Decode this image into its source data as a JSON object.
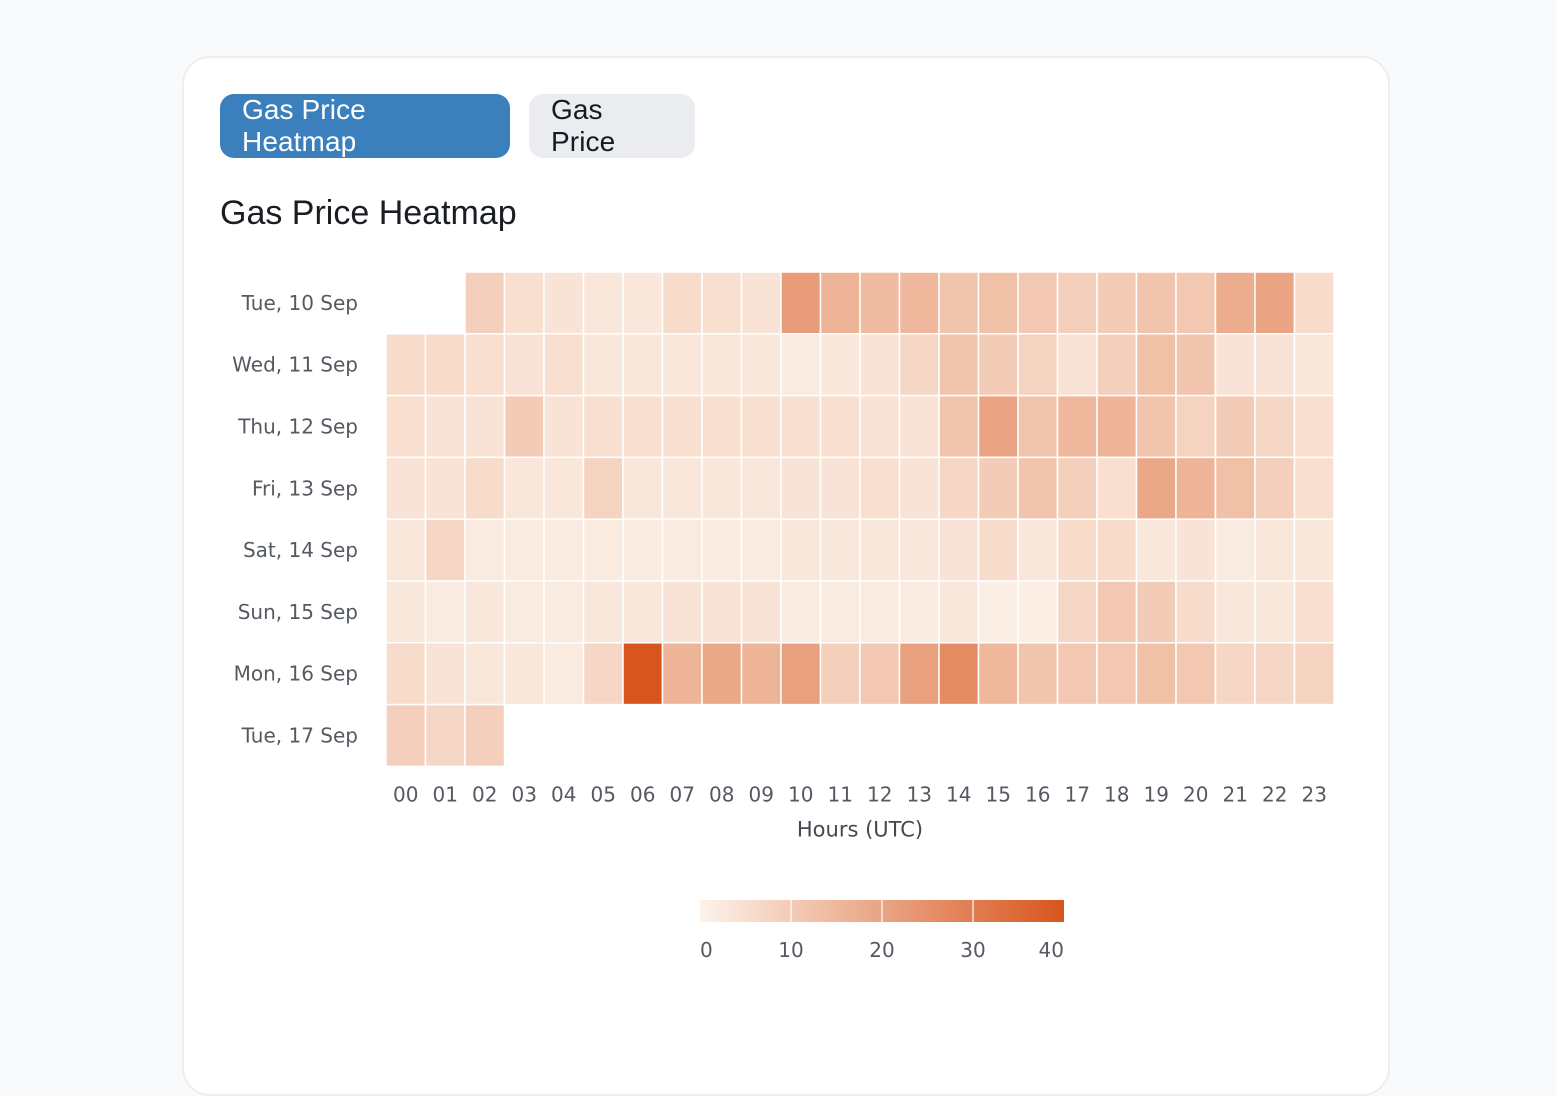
{
  "tabs": [
    {
      "label": "Gas Price Heatmap",
      "active": true
    },
    {
      "label": "Gas Price",
      "active": false
    }
  ],
  "heading": "Gas Price Heatmap",
  "chart_data": {
    "type": "heatmap",
    "title": "Gas Price Heatmap",
    "xlabel": "Hours (UTC)",
    "ylabel": "",
    "x_categories": [
      "00",
      "01",
      "02",
      "03",
      "04",
      "05",
      "06",
      "07",
      "08",
      "09",
      "10",
      "11",
      "12",
      "13",
      "14",
      "15",
      "16",
      "17",
      "18",
      "19",
      "20",
      "21",
      "22",
      "23"
    ],
    "y_categories": [
      "Tue, 10 Sep",
      "Wed, 11 Sep",
      "Thu, 12 Sep",
      "Fri, 13 Sep",
      "Sat, 14 Sep",
      "Sun, 15 Sep",
      "Mon, 16 Sep",
      "Tue, 17 Sep"
    ],
    "values": [
      [
        null,
        null,
        9,
        5,
        4,
        3,
        3,
        6,
        5,
        4,
        22,
        16,
        14,
        15,
        12,
        13,
        11,
        9,
        10,
        12,
        11,
        18,
        20,
        6
      ],
      [
        6,
        6,
        5,
        4,
        5,
        3,
        3,
        3,
        3,
        3,
        2,
        3,
        4,
        7,
        12,
        10,
        8,
        4,
        9,
        13,
        12,
        4,
        4,
        3
      ],
      [
        5,
        4,
        4,
        10,
        4,
        5,
        5,
        5,
        5,
        5,
        5,
        5,
        4,
        4,
        12,
        20,
        12,
        15,
        16,
        12,
        8,
        10,
        7,
        5
      ],
      [
        4,
        4,
        6,
        3,
        3,
        8,
        3,
        3,
        3,
        3,
        4,
        4,
        5,
        4,
        7,
        10,
        12,
        9,
        5,
        19,
        16,
        13,
        9,
        5
      ],
      [
        3,
        7,
        2,
        2,
        2,
        2,
        2,
        2,
        2,
        2,
        3,
        3,
        3,
        3,
        4,
        6,
        3,
        6,
        6,
        3,
        4,
        2,
        3,
        3
      ],
      [
        3,
        2,
        3,
        2,
        2,
        3,
        3,
        4,
        4,
        4,
        2,
        2,
        2,
        2,
        3,
        1,
        1,
        7,
        11,
        10,
        6,
        3,
        3,
        5
      ],
      [
        6,
        4,
        3,
        3,
        2,
        7,
        41,
        16,
        19,
        16,
        21,
        9,
        11,
        21,
        26,
        15,
        12,
        11,
        11,
        13,
        11,
        7,
        7,
        8
      ],
      [
        9,
        7,
        9,
        null,
        null,
        null,
        null,
        null,
        null,
        null,
        null,
        null,
        null,
        null,
        null,
        null,
        null,
        null,
        null,
        null,
        null,
        null,
        null,
        null
      ]
    ],
    "colorbar": {
      "min": 0,
      "max": 40,
      "ticks": [
        0,
        10,
        20,
        30,
        40
      ],
      "color_low": "#fcf3ea",
      "color_high": "#d8551d"
    },
    "grid": false
  }
}
